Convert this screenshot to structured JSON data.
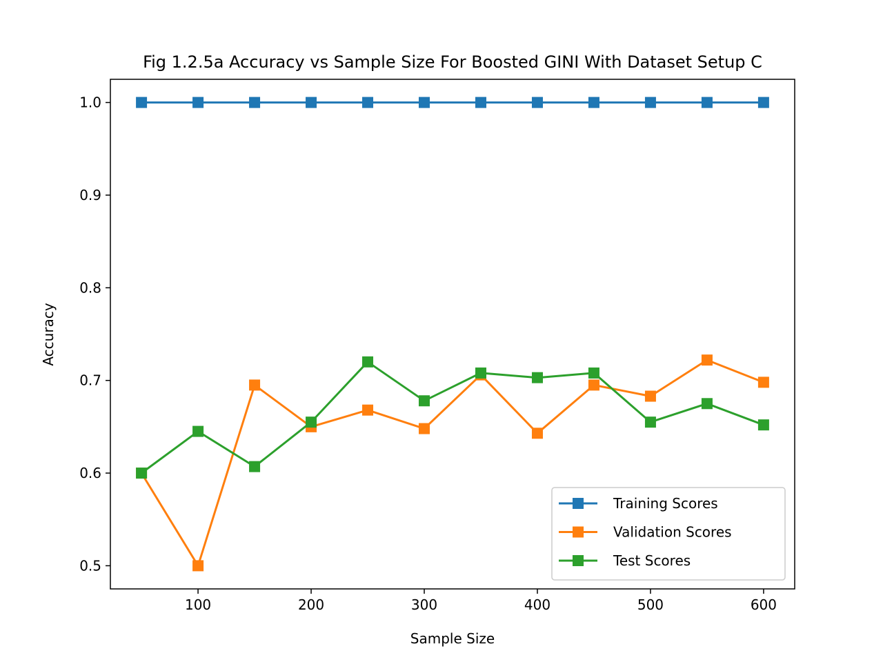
{
  "chart_data": {
    "type": "line",
    "title": "Fig 1.2.5a Accuracy vs Sample Size For Boosted GINI With Dataset Setup C",
    "xlabel": "Sample Size",
    "ylabel": "Accuracy",
    "x": [
      50,
      100,
      150,
      200,
      250,
      300,
      350,
      400,
      450,
      500,
      550,
      600
    ],
    "xticks": [
      100,
      200,
      300,
      400,
      500,
      600
    ],
    "yticks": [
      0.5,
      0.6,
      0.7,
      0.8,
      0.9,
      1.0
    ],
    "xtick_labels": [
      "100",
      "200",
      "300",
      "400",
      "500",
      "600"
    ],
    "ytick_labels": [
      "0.5",
      "0.6",
      "0.7",
      "0.8",
      "0.9",
      "1.0"
    ],
    "xlim": [
      22.5,
      627.5
    ],
    "ylim": [
      0.475,
      1.025
    ],
    "grid": false,
    "legend_position": "lower-right",
    "series": [
      {
        "name": "Training Scores",
        "color": "#1f77b4",
        "marker": "square",
        "values": [
          1.0,
          1.0,
          1.0,
          1.0,
          1.0,
          1.0,
          1.0,
          1.0,
          1.0,
          1.0,
          1.0,
          1.0
        ]
      },
      {
        "name": "Validation Scores",
        "color": "#ff7f0e",
        "marker": "square",
        "values": [
          0.6,
          0.5,
          0.695,
          0.65,
          0.668,
          0.648,
          0.706,
          0.643,
          0.695,
          0.683,
          0.722,
          0.698
        ]
      },
      {
        "name": "Test Scores",
        "color": "#2ca02c",
        "marker": "square",
        "values": [
          0.6,
          0.645,
          0.607,
          0.655,
          0.72,
          0.678,
          0.708,
          0.703,
          0.708,
          0.655,
          0.675,
          0.652
        ]
      }
    ]
  }
}
